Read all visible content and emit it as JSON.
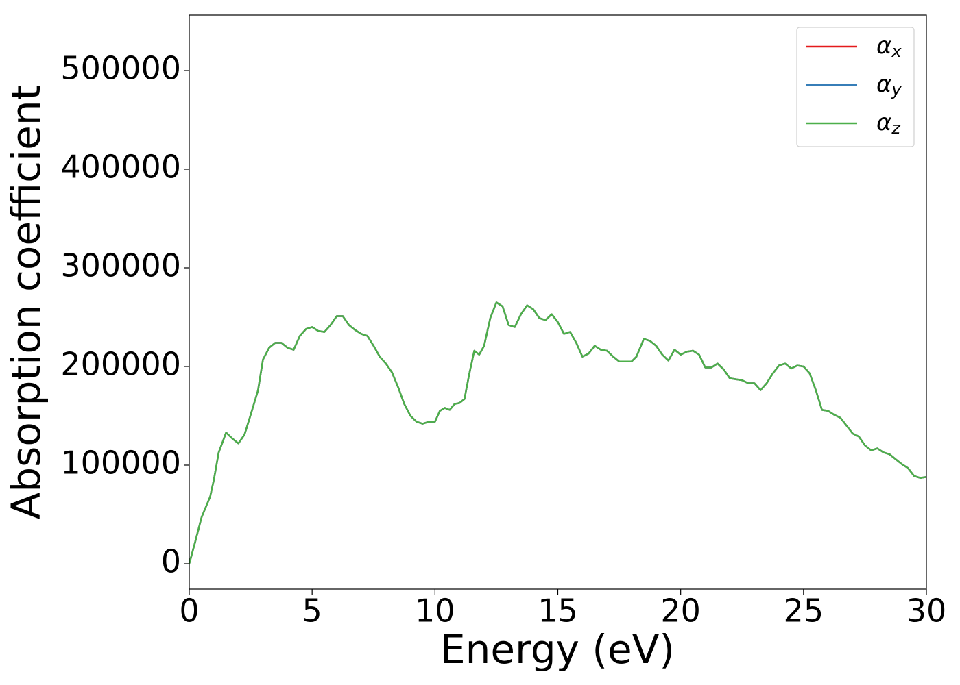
{
  "chart_data": {
    "type": "line",
    "xlabel": "Energy (eV)",
    "ylabel": "Absorption coefficient",
    "x": [
      0,
      0.25,
      0.5,
      0.85,
      1.0,
      1.2,
      1.5,
      1.75,
      2.0,
      2.25,
      2.5,
      2.8,
      3.0,
      3.25,
      3.5,
      3.75,
      4.0,
      4.25,
      4.5,
      4.75,
      5.0,
      5.25,
      5.5,
      5.75,
      6.0,
      6.25,
      6.5,
      6.75,
      7.0,
      7.25,
      7.5,
      7.75,
      8.0,
      8.25,
      8.5,
      8.75,
      9.0,
      9.25,
      9.5,
      9.75,
      10.0,
      10.2,
      10.4,
      10.6,
      10.8,
      11.0,
      11.2,
      11.4,
      11.6,
      11.8,
      12.0,
      12.25,
      12.5,
      12.75,
      13.0,
      13.25,
      13.5,
      13.75,
      14.0,
      14.25,
      14.5,
      14.75,
      15.0,
      15.25,
      15.5,
      15.75,
      16.0,
      16.25,
      16.5,
      16.75,
      17.0,
      17.25,
      17.5,
      18.0,
      18.2,
      18.5,
      18.75,
      19.0,
      19.25,
      19.5,
      19.75,
      20.0,
      20.25,
      20.5,
      20.75,
      21.0,
      21.25,
      21.5,
      21.75,
      22.0,
      22.5,
      22.75,
      23.0,
      23.25,
      23.5,
      23.75,
      24.0,
      24.25,
      24.5,
      24.75,
      25.0,
      25.25,
      25.5,
      25.75,
      26.0,
      26.25,
      26.5,
      26.75,
      27.0,
      27.25,
      27.5,
      27.75,
      28.0,
      28.25,
      28.5,
      28.75,
      29.0,
      29.25,
      29.5,
      29.75,
      30
    ],
    "series": [
      {
        "name": "αx",
        "color": "#e41a1c",
        "values": [
          0,
          23000,
          47000,
          68000,
          85000,
          113000,
          133000,
          127000,
          122000,
          131000,
          151000,
          176000,
          207000,
          219000,
          224000,
          224000,
          219000,
          217000,
          231000,
          238000,
          240000,
          236000,
          235000,
          242000,
          251000,
          251000,
          242000,
          237000,
          233000,
          231000,
          221000,
          210000,
          203000,
          194000,
          179000,
          162000,
          150000,
          144000,
          142000,
          144000,
          144000,
          155000,
          158000,
          156000,
          162000,
          163000,
          167000,
          193000,
          216000,
          212000,
          221000,
          249000,
          265000,
          261000,
          242000,
          240000,
          253000,
          262000,
          258000,
          249000,
          247000,
          253000,
          245000,
          233000,
          235000,
          224000,
          210000,
          213000,
          221000,
          217000,
          216000,
          210000,
          205000,
          205000,
          210000,
          228000,
          226000,
          221000,
          212000,
          206000,
          217000,
          212000,
          215000,
          216000,
          212000,
          199000,
          199000,
          203000,
          197000,
          188000,
          186000,
          183000,
          183000,
          176000,
          183000,
          193000,
          201000,
          203000,
          198000,
          201000,
          200000,
          193000,
          176000,
          156000,
          155000,
          151000,
          148000,
          140000,
          132000,
          129000,
          120000,
          115000,
          117000,
          113000,
          111000,
          106000,
          101000,
          97000,
          89000,
          87000,
          88000
        ]
      },
      {
        "name": "αy",
        "color": "#377eb8",
        "values": [
          0,
          23000,
          47000,
          68000,
          85000,
          113000,
          133000,
          127000,
          122000,
          131000,
          151000,
          176000,
          207000,
          219000,
          224000,
          224000,
          219000,
          217000,
          231000,
          238000,
          240000,
          236000,
          235000,
          242000,
          251000,
          251000,
          242000,
          237000,
          233000,
          231000,
          221000,
          210000,
          203000,
          194000,
          179000,
          162000,
          150000,
          144000,
          142000,
          144000,
          144000,
          155000,
          158000,
          156000,
          162000,
          163000,
          167000,
          193000,
          216000,
          212000,
          221000,
          249000,
          265000,
          261000,
          242000,
          240000,
          253000,
          262000,
          258000,
          249000,
          247000,
          253000,
          245000,
          233000,
          235000,
          224000,
          210000,
          213000,
          221000,
          217000,
          216000,
          210000,
          205000,
          205000,
          210000,
          228000,
          226000,
          221000,
          212000,
          206000,
          217000,
          212000,
          215000,
          216000,
          212000,
          199000,
          199000,
          203000,
          197000,
          188000,
          186000,
          183000,
          183000,
          176000,
          183000,
          193000,
          201000,
          203000,
          198000,
          201000,
          200000,
          193000,
          176000,
          156000,
          155000,
          151000,
          148000,
          140000,
          132000,
          129000,
          120000,
          115000,
          117000,
          113000,
          111000,
          106000,
          101000,
          97000,
          89000,
          87000,
          88000
        ]
      },
      {
        "name": "αz",
        "color": "#4daf4a",
        "values": [
          0,
          23000,
          47000,
          68000,
          85000,
          113000,
          133000,
          127000,
          122000,
          131000,
          151000,
          176000,
          207000,
          219000,
          224000,
          224000,
          219000,
          217000,
          231000,
          238000,
          240000,
          236000,
          235000,
          242000,
          251000,
          251000,
          242000,
          237000,
          233000,
          231000,
          221000,
          210000,
          203000,
          194000,
          179000,
          162000,
          150000,
          144000,
          142000,
          144000,
          144000,
          155000,
          158000,
          156000,
          162000,
          163000,
          167000,
          193000,
          216000,
          212000,
          221000,
          249000,
          265000,
          261000,
          242000,
          240000,
          253000,
          262000,
          258000,
          249000,
          247000,
          253000,
          245000,
          233000,
          235000,
          224000,
          210000,
          213000,
          221000,
          217000,
          216000,
          210000,
          205000,
          205000,
          210000,
          228000,
          226000,
          221000,
          212000,
          206000,
          217000,
          212000,
          215000,
          216000,
          212000,
          199000,
          199000,
          203000,
          197000,
          188000,
          186000,
          183000,
          183000,
          176000,
          183000,
          193000,
          201000,
          203000,
          198000,
          201000,
          200000,
          193000,
          176000,
          156000,
          155000,
          151000,
          148000,
          140000,
          132000,
          129000,
          120000,
          115000,
          117000,
          113000,
          111000,
          106000,
          101000,
          97000,
          89000,
          87000,
          88000
        ]
      }
    ],
    "xlim": [
      0,
      30
    ],
    "xticks": [
      0,
      5,
      10,
      15,
      20,
      25,
      30
    ],
    "ylim": [
      -25700,
      556250
    ],
    "yticks": [
      0,
      100000,
      200000,
      300000,
      400000,
      500000
    ],
    "grid": false,
    "legend": "upper right"
  }
}
